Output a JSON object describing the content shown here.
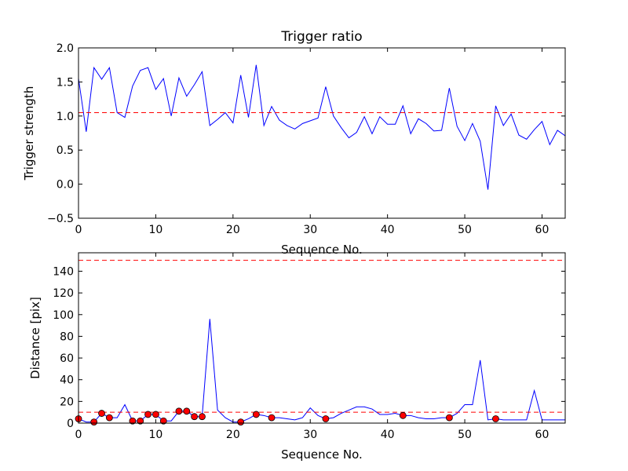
{
  "chart_data": [
    {
      "type": "line",
      "title": "Trigger ratio",
      "xlabel": "Sequence No.",
      "ylabel": "Trigger strength",
      "xlim": [
        0,
        63
      ],
      "ylim": [
        -0.5,
        2.0
      ],
      "xticks": [
        "0",
        "10",
        "20",
        "30",
        "40",
        "50",
        "60"
      ],
      "yticks": [
        "−0.5",
        "0.0",
        "0.5",
        "1.0",
        "1.5",
        "2.0"
      ],
      "grid": false,
      "series": [
        {
          "color": "#0000ff",
          "x": [
            0,
            1,
            2,
            3,
            4,
            5,
            6,
            7,
            8,
            9,
            10,
            11,
            12,
            13,
            14,
            15,
            16,
            17,
            18,
            19,
            20,
            21,
            22,
            23,
            24,
            25,
            26,
            27,
            28,
            29,
            30,
            31,
            32,
            33,
            34,
            35,
            36,
            37,
            38,
            39,
            40,
            41,
            42,
            43,
            44,
            45,
            46,
            47,
            48,
            49,
            50,
            51,
            52,
            53,
            54,
            55,
            56,
            57,
            58,
            59,
            60,
            61,
            62,
            63
          ],
          "y": [
            1.55,
            0.77,
            1.71,
            1.54,
            1.71,
            1.05,
            0.98,
            1.44,
            1.67,
            1.71,
            1.39,
            1.55,
            1.0,
            1.56,
            1.29,
            1.46,
            1.65,
            0.86,
            0.95,
            1.05,
            0.9,
            1.6,
            0.98,
            1.75,
            0.86,
            1.14,
            0.94,
            0.86,
            0.81,
            0.89,
            0.93,
            0.97,
            1.43,
            1.0,
            0.83,
            0.68,
            0.76,
            0.99,
            0.74,
            0.99,
            0.88,
            0.88,
            1.15,
            0.74,
            0.96,
            0.89,
            0.78,
            0.79,
            1.41,
            0.85,
            0.64,
            0.89,
            0.63,
            -0.08,
            1.15,
            0.86,
            1.03,
            0.72,
            0.66,
            0.8,
            0.92,
            0.58,
            0.79,
            0.71
          ]
        }
      ],
      "hlines": [
        {
          "y": 1.05,
          "color": "#ff0000",
          "style": "dashed"
        }
      ]
    },
    {
      "type": "line",
      "title": "",
      "xlabel": "Sequence No.",
      "ylabel": "Distance [pix]",
      "xlim": [
        0,
        63
      ],
      "ylim": [
        0,
        157
      ],
      "xticks": [
        "0",
        "10",
        "20",
        "30",
        "40",
        "50",
        "60"
      ],
      "yticks": [
        "0",
        "20",
        "40",
        "60",
        "80",
        "100",
        "120",
        "140"
      ],
      "grid": false,
      "series": [
        {
          "color": "#0000ff",
          "x": [
            0,
            1,
            2,
            3,
            4,
            5,
            6,
            7,
            8,
            9,
            10,
            11,
            12,
            13,
            14,
            15,
            16,
            17,
            18,
            19,
            20,
            21,
            22,
            23,
            24,
            25,
            26,
            27,
            28,
            29,
            30,
            31,
            32,
            33,
            34,
            35,
            36,
            37,
            38,
            39,
            40,
            41,
            42,
            43,
            44,
            45,
            46,
            47,
            48,
            49,
            50,
            51,
            52,
            53,
            54,
            55,
            56,
            57,
            58,
            59,
            60,
            61,
            62,
            63
          ],
          "y": [
            4,
            1,
            1,
            9,
            5,
            5,
            17,
            2,
            2,
            8,
            8,
            2,
            2,
            11,
            11,
            6,
            6,
            96,
            12,
            5,
            1,
            1,
            4,
            8,
            7,
            5,
            5,
            4,
            3,
            5,
            14,
            7,
            4,
            5,
            9,
            12,
            15,
            15,
            13,
            8,
            8,
            9,
            7,
            7,
            5,
            4,
            4,
            5,
            5,
            9,
            17,
            17,
            58,
            3,
            4,
            3,
            3,
            3,
            3,
            30,
            3,
            3,
            3,
            3
          ]
        }
      ],
      "markers": {
        "color": "#ff0000",
        "x": [
          0,
          2,
          3,
          4,
          7,
          8,
          9,
          10,
          11,
          13,
          14,
          15,
          16,
          21,
          23,
          25,
          32,
          42,
          48,
          54
        ],
        "y": [
          4,
          1,
          9,
          5,
          2,
          2,
          8,
          8,
          2,
          11,
          11,
          6,
          6,
          1,
          8,
          5,
          4,
          7,
          5,
          4
        ]
      },
      "hlines": [
        {
          "y": 150,
          "color": "#ff0000",
          "style": "dashed"
        },
        {
          "y": 10,
          "color": "#ff0000",
          "style": "dashed"
        }
      ]
    }
  ]
}
